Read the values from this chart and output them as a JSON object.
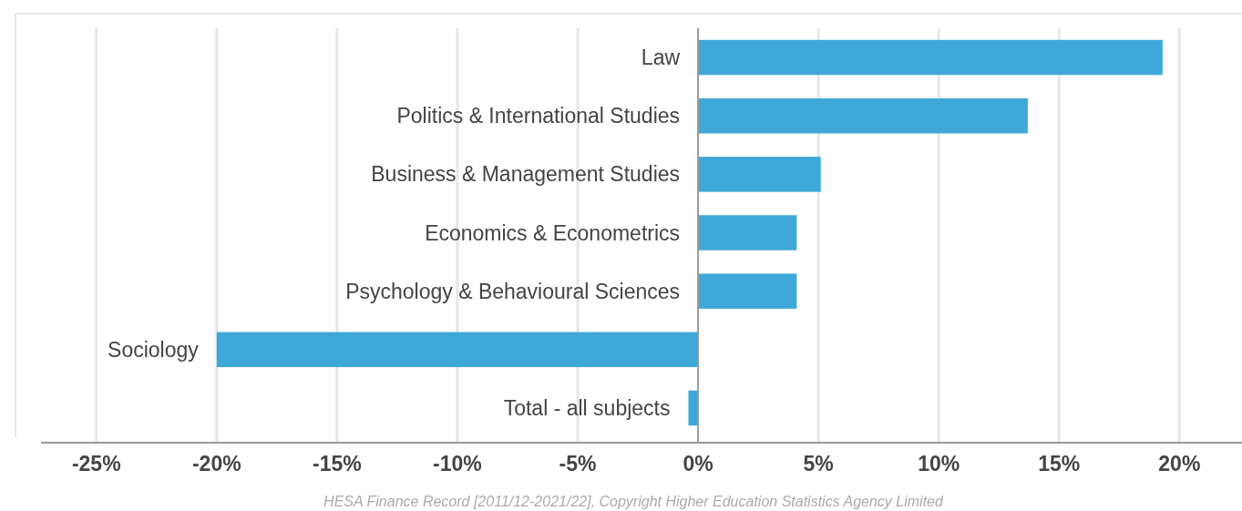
{
  "chart_data": {
    "type": "bar",
    "orientation": "horizontal",
    "categories": [
      "Law",
      "Politics & International Studies",
      "Business & Management Studies",
      "Economics & Econometrics",
      "Psychology & Behavioural Sciences",
      "Sociology",
      "Total - all subjects"
    ],
    "values": [
      19.3,
      13.7,
      5.1,
      4.1,
      4.1,
      -20.0,
      -0.4
    ],
    "color": "#3ea8d8",
    "xlim": [
      -27.3,
      22.6
    ],
    "xticks": [
      {
        "value": -25,
        "label": "-25%"
      },
      {
        "value": -20,
        "label": "-20%"
      },
      {
        "value": -15,
        "label": "-15%"
      },
      {
        "value": -10,
        "label": "-10%"
      },
      {
        "value": -5,
        "label": "-5%"
      },
      {
        "value": 0,
        "label": "0%"
      },
      {
        "value": 5,
        "label": "5%"
      },
      {
        "value": 10,
        "label": "10%"
      },
      {
        "value": 15,
        "label": "15%"
      },
      {
        "value": 20,
        "label": "20%"
      }
    ],
    "grid": "x",
    "annotations": [
      "HESA Finance Record [2011/12-2021/22], Copyright Higher Education Statistics Agency Limited"
    ]
  }
}
